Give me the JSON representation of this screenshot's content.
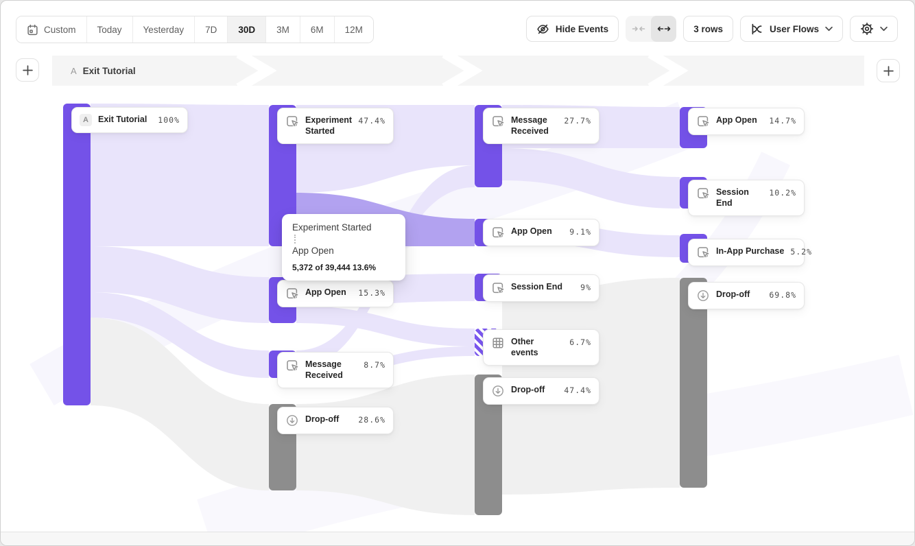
{
  "toolbar": {
    "date_ranges": [
      "Custom",
      "Today",
      "Yesterday",
      "7D",
      "30D",
      "3M",
      "6M",
      "12M"
    ],
    "active_range": "30D",
    "hide_events": "Hide Events",
    "rows": "3 rows",
    "view": "User Flows"
  },
  "breadcrumb": {
    "badge": "A",
    "label": "Exit Tutorial"
  },
  "tooltip": {
    "from": "Experiment Started",
    "to": "App Open",
    "stat": "5,372 of 39,444 13.6%"
  },
  "colors": {
    "accent": "#7452e8",
    "flow_light": "#e9e4fb",
    "flow_highlight": "#b2a2f0",
    "flow_gray": "#f0f0f0",
    "dropoff_bar": "#8d8d8d"
  },
  "flow": {
    "columns": [
      {
        "nodes": [
          {
            "label": "Exit Tutorial",
            "pct": "100%",
            "type": "start",
            "bar": [
              150,
              440
            ],
            "card": 155
          }
        ]
      },
      {
        "nodes": [
          {
            "label": "Experiment Started",
            "pct": "47.4%",
            "type": "event",
            "bar": [
              152,
              206
            ],
            "card": 156
          },
          {
            "label": "App Open",
            "pct": "15.3%",
            "type": "event",
            "bar": [
              403,
              67
            ],
            "card": 407
          },
          {
            "label": "Message Received",
            "pct": "8.7%",
            "type": "event",
            "bar": [
              510,
              40
            ],
            "card": 512
          },
          {
            "label": "Drop-off",
            "pct": "28.6%",
            "type": "dropoff",
            "bar": [
              588,
              126
            ],
            "card": 592
          }
        ]
      },
      {
        "nodes": [
          {
            "label": "Message Received",
            "pct": "27.7%",
            "type": "event",
            "bar": [
              152,
              120
            ],
            "card": 156
          },
          {
            "label": "App Open",
            "pct": "9.1%",
            "type": "event",
            "bar": [
              318,
              40
            ],
            "card": 318
          },
          {
            "label": "Session End",
            "pct": "9%",
            "type": "event",
            "bar": [
              398,
              40
            ],
            "card": 399
          },
          {
            "label": "Other events",
            "pct": "6.7%",
            "type": "other",
            "bar": [
              478,
              40
            ],
            "card": 479
          },
          {
            "label": "Drop-off",
            "pct": "47.4%",
            "type": "dropoff",
            "bar": [
              545,
              205
            ],
            "card": 549
          }
        ]
      },
      {
        "nodes": [
          {
            "label": "App Open",
            "pct": "14.7%",
            "type": "event",
            "bar": [
              155,
              60
            ],
            "card": 156
          },
          {
            "label": "Session End",
            "pct": "10.2%",
            "type": "event",
            "bar": [
              257,
              46
            ],
            "card": 261
          },
          {
            "label": "In-App Purchase",
            "pct": "5.2%",
            "type": "event",
            "bar": [
              340,
              42
            ],
            "card": 347,
            "nowrap": true
          },
          {
            "label": "Drop-off",
            "pct": "69.8%",
            "type": "dropoff",
            "bar": [
              404,
              306
            ],
            "card": 410
          }
        ]
      }
    ]
  }
}
